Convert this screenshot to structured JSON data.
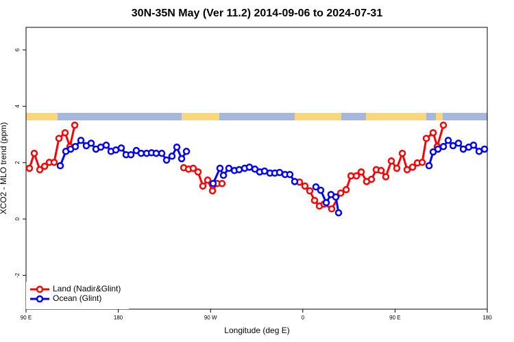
{
  "chart_data": {
    "type": "line",
    "title": "30N-35N May (Ver 11.2)   2014-09-06 to 2024-07-31",
    "x_label": "Longitude (deg E)",
    "y_label": "XCO2 - MLO trend (ppm)",
    "xlim": [
      90,
      540
    ],
    "ylim": [
      -3.2,
      6.8
    ],
    "xticks": [
      {
        "value": 90,
        "label": "90 E"
      },
      180,
      {
        "value": 270,
        "label": "90 W"
      },
      {
        "value": 360,
        "label": "0"
      },
      {
        "value": 450,
        "label": "90 E"
      },
      {
        "value": 540,
        "label": "180"
      }
    ],
    "yticks": [
      -2,
      0,
      2,
      4,
      6
    ],
    "legend": "bottom-left",
    "series": [
      {
        "name": "Land (Nadir&Glint)",
        "color": "#ff0000",
        "x": [
          93.3,
          98.0,
          103.4,
          108.1,
          112.7,
          117.4,
          122.1,
          128.1,
          132.8,
          137.5,
          null,
          243.8,
          248.5,
          253.1,
          257.8,
          262.5,
          267.2,
          271.9,
          276.5,
          281.2,
          null,
          356.8,
          362.1,
          366.8,
          371.5,
          376.2,
          380.8,
          388.2,
          397.0,
          402.3,
          407.0,
          412.3,
          417.0,
          422.3,
          427.0,
          431.7,
          436.4,
          441.0,
          446.4,
          451.7,
          457.1,
          461.8,
          467.1,
          471.8,
          476.5,
          480.5,
          487.2,
          491.2,
          497.2
        ],
        "values": [
          1.8,
          2.33,
          1.75,
          1.87,
          2.01,
          2.01,
          2.86,
          3.06,
          2.57,
          3.33,
          null,
          1.82,
          1.77,
          1.8,
          1.67,
          1.17,
          1.38,
          1.0,
          1.26,
          1.26,
          null,
          1.31,
          1.17,
          1.0,
          0.66,
          0.46,
          0.53,
          0.36,
          0.92,
          1.04,
          1.53,
          1.53,
          1.67,
          1.33,
          1.41,
          1.75,
          1.72,
          1.5,
          2.06,
          1.8,
          2.33,
          1.75,
          1.84,
          1.99,
          2.01,
          2.86,
          3.06,
          2.57,
          3.33
        ]
      },
      {
        "name": "Ocean (Glint)",
        "color": "#0000ff",
        "x": [
          123.4,
          128.8,
          133.5,
          138.1,
          143.5,
          148.8,
          153.5,
          158.2,
          162.9,
          168.2,
          172.9,
          177.6,
          182.9,
          187.6,
          192.3,
          197.6,
          202.3,
          207.7,
          212.4,
          217.0,
          222.4,
          227.1,
          232.4,
          237.1,
          241.8,
          246.5,
          null,
          272.5,
          279.2,
          282.6,
          287.9,
          293.3,
          297.9,
          303.3,
          307.9,
          313.3,
          318.0,
          322.7,
          328.0,
          332.7,
          337.4,
          342.7,
          347.4,
          352.1,
          null,
          372.8,
          377.5,
          382.9,
          387.5,
          392.2,
          394.9,
          null,
          483.2,
          487.2,
          491.9,
          497.2,
          501.9,
          506.6,
          511.9,
          516.6,
          521.9,
          526.6,
          532.0,
          537.3
        ],
        "values": [
          1.89,
          2.4,
          2.48,
          2.57,
          2.79,
          2.6,
          2.69,
          2.48,
          2.55,
          2.62,
          2.4,
          2.45,
          2.52,
          2.28,
          2.28,
          2.43,
          2.33,
          2.33,
          2.35,
          2.33,
          2.33,
          2.09,
          2.23,
          2.55,
          2.14,
          2.4,
          null,
          1.26,
          1.8,
          1.55,
          1.8,
          1.72,
          1.75,
          1.8,
          1.84,
          1.77,
          1.67,
          1.7,
          1.63,
          1.63,
          1.65,
          1.58,
          1.58,
          1.33,
          null,
          1.14,
          1.02,
          0.58,
          0.87,
          0.78,
          0.22,
          null,
          1.89,
          2.38,
          2.48,
          2.57,
          2.79,
          2.6,
          2.69,
          2.48,
          2.55,
          2.62,
          2.4,
          2.48
        ]
      }
    ]
  }
}
